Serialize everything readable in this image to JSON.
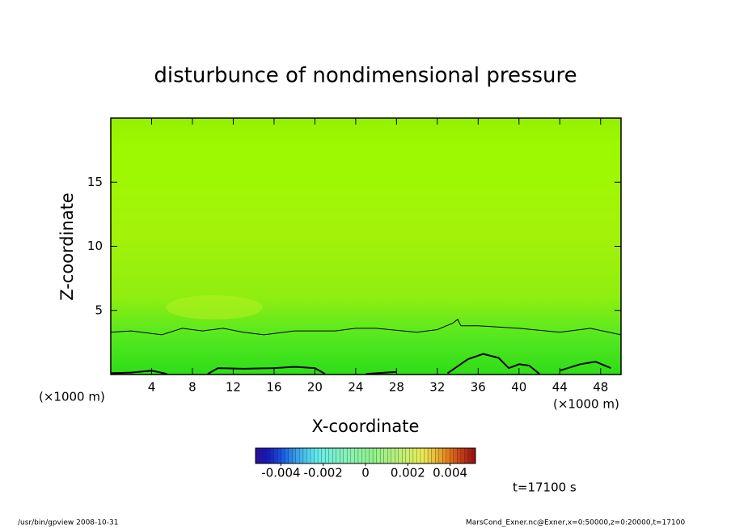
{
  "chart_data": {
    "type": "contour",
    "title": "disturbunce of nondimensional pressure",
    "x_label": "X-coordinate",
    "y_label": "Z-coordinate",
    "x_unit": "(×1000 m)",
    "y_unit": "(×1000 m)",
    "xlim": [
      0,
      50
    ],
    "ylim": [
      0,
      20
    ],
    "xticks": [
      4,
      8,
      12,
      16,
      20,
      24,
      28,
      32,
      36,
      40,
      44,
      48
    ],
    "yticks": [
      5,
      10,
      15
    ],
    "series": [
      {
        "color": "#000000",
        "width": 1,
        "x": [
          0,
          2,
          5,
          7,
          9,
          11,
          13,
          15,
          18,
          22,
          24,
          26,
          30,
          32,
          33.5,
          34,
          34.3,
          36,
          40,
          44,
          47,
          50
        ],
        "values": [
          3.3,
          3.4,
          3.1,
          3.6,
          3.4,
          3.6,
          3.3,
          3.1,
          3.4,
          3.4,
          3.6,
          3.6,
          3.3,
          3.5,
          4.0,
          4.3,
          3.8,
          3.8,
          3.6,
          3.3,
          3.6,
          3.1
        ]
      },
      {
        "color": "#000000",
        "width": 2,
        "x": [
          0,
          2,
          4,
          5.5,
          null,
          9.5,
          10.5,
          13,
          16,
          18,
          20,
          21,
          null,
          25,
          28,
          null,
          33,
          35,
          36.5,
          38,
          39,
          40,
          41,
          42,
          null,
          44,
          46,
          47.5,
          49
        ],
        "values": [
          0.1,
          0.15,
          0.3,
          0.05,
          null,
          0.05,
          0.5,
          0.45,
          0.5,
          0.6,
          0.5,
          0.05,
          null,
          0.05,
          0.2,
          null,
          0.1,
          1.2,
          1.6,
          1.3,
          0.5,
          0.8,
          0.7,
          0.05,
          null,
          0.3,
          0.8,
          1.0,
          0.5
        ]
      }
    ],
    "colorbar": {
      "clim": [
        -0.0052,
        0.0052
      ],
      "ticks": [
        -0.004,
        -0.002,
        0,
        0.002,
        0.004
      ]
    },
    "time_label": "t=17100 s",
    "footer_left": "/usr/bin/gpview   2008-10-31",
    "footer_right": "MarsCond_Exner.nc@Exner,x=0:50000,z=0:20000,t=17100"
  }
}
